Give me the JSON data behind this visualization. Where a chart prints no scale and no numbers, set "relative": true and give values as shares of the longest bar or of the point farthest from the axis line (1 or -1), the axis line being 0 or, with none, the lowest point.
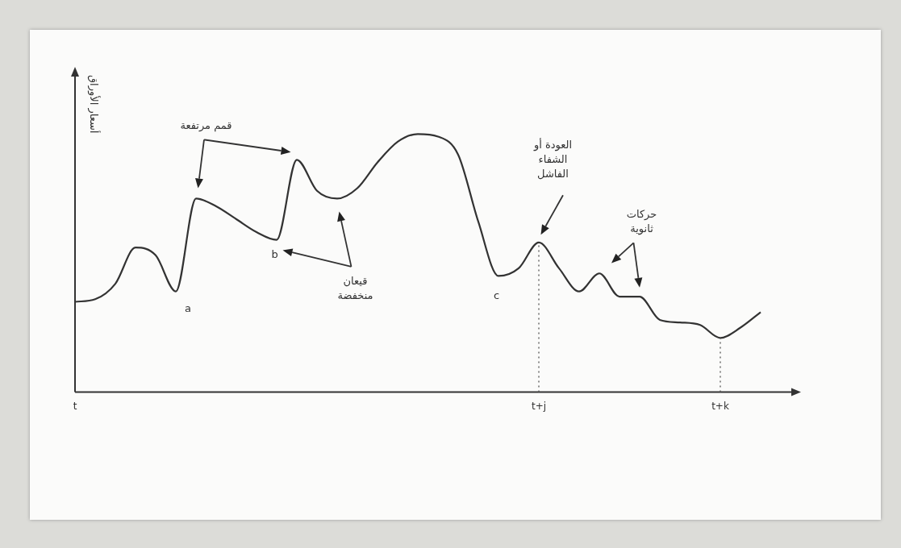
{
  "chart_data": {
    "type": "line",
    "relative": true,
    "color": "#333333",
    "ylabel": "أسعار الأوراق",
    "tick_labels": "x",
    "categories": [
      "t",
      null,
      null,
      null,
      null,
      null,
      null,
      null,
      null,
      null,
      null,
      null,
      null,
      null,
      null,
      null,
      null,
      null,
      null,
      null,
      null,
      null,
      null,
      "t+j",
      null,
      null,
      null,
      null,
      null,
      null,
      null,
      null,
      "t+k",
      null,
      null,
      null,
      null
    ],
    "values": [
      0.35,
      0.36,
      0.42,
      0.56,
      0.53,
      0.39,
      0.75,
      0.72,
      0.67,
      0.62,
      0.59,
      0.9,
      0.78,
      0.75,
      0.79,
      0.89,
      0.97,
      1,
      0.99,
      0.92,
      0.66,
      0.45,
      0.48,
      0.58,
      0.48,
      0.39,
      0.46,
      0.37,
      0.37,
      0.28,
      0.27,
      0.26,
      0.21,
      0.25,
      0.31,
      null,
      null
    ],
    "line_style": "solid",
    "ref_lines": [
      {
        "axis": "x",
        "value": "t+j",
        "line_style": "dotted"
      },
      {
        "axis": "x",
        "value": "t+k",
        "line_style": "dotted"
      }
    ],
    "annotations": [
      "قمم مرتفعة",
      "قيعان\nمنخفضة",
      "العودة أو\nالشفاء\nالفاشل",
      "حركات\nثانوية",
      "a",
      "b",
      "c"
    ]
  }
}
